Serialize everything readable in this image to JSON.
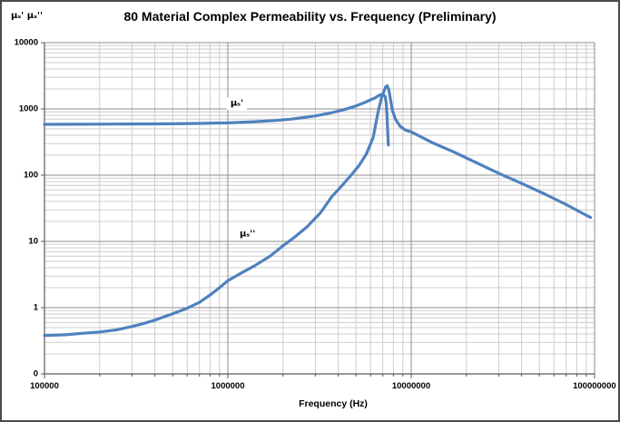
{
  "chart_data": {
    "type": "line",
    "title": "80 Material Complex Permeability vs. Frequency (Preliminary)",
    "xlabel": "Frequency (Hz)",
    "ylabel": "μₛ' μₛ''",
    "x_scale": "log",
    "y_scale": "log",
    "x_range": [
      100000,
      100000000
    ],
    "y_range": [
      0.1,
      10000
    ],
    "grid": "major-and-minor",
    "legend_position": "none",
    "x_ticks": [
      {
        "label": "100000",
        "value": 100000
      },
      {
        "label": "1000000",
        "value": 1000000
      },
      {
        "label": "10000000",
        "value": 10000000
      },
      {
        "label": "100000000",
        "value": 100000000
      }
    ],
    "y_ticks": [
      {
        "label": "10000",
        "value": 10000
      },
      {
        "label": "1000",
        "value": 1000
      },
      {
        "label": "100",
        "value": 100
      },
      {
        "label": "10",
        "value": 10
      },
      {
        "label": "1",
        "value": 1
      },
      {
        "label": "0",
        "value": 0.1
      }
    ],
    "line_color": "#4f81bd",
    "series": [
      {
        "name": "μₛ'",
        "points": [
          [
            100000,
            585
          ],
          [
            150000,
            587
          ],
          [
            200000,
            589
          ],
          [
            300000,
            592
          ],
          [
            400000,
            594
          ],
          [
            500000,
            597
          ],
          [
            700000,
            603
          ],
          [
            1000000,
            615
          ],
          [
            1400000,
            640
          ],
          [
            1800000,
            668
          ],
          [
            2200000,
            700
          ],
          [
            2600000,
            740
          ],
          [
            3000000,
            785
          ],
          [
            3500000,
            850
          ],
          [
            4000000,
            925
          ],
          [
            4500000,
            1010
          ],
          [
            5000000,
            1110
          ],
          [
            5500000,
            1230
          ],
          [
            6000000,
            1370
          ],
          [
            6400000,
            1480
          ],
          [
            6600000,
            1570
          ],
          [
            6800000,
            1640
          ],
          [
            7000000,
            1650
          ],
          [
            7200000,
            1550
          ],
          [
            7300000,
            1250
          ],
          [
            7380000,
            800
          ],
          [
            7440000,
            450
          ],
          [
            7500000,
            285
          ]
        ]
      },
      {
        "name": "μₛ''",
        "points": [
          [
            100000,
            0.38
          ],
          [
            130000,
            0.39
          ],
          [
            160000,
            0.41
          ],
          [
            200000,
            0.43
          ],
          [
            250000,
            0.465
          ],
          [
            300000,
            0.52
          ],
          [
            350000,
            0.58
          ],
          [
            400000,
            0.65
          ],
          [
            450000,
            0.73
          ],
          [
            500000,
            0.81
          ],
          [
            600000,
            0.98
          ],
          [
            700000,
            1.2
          ],
          [
            800000,
            1.55
          ],
          [
            900000,
            2.0
          ],
          [
            1000000,
            2.55
          ],
          [
            1200000,
            3.4
          ],
          [
            1400000,
            4.3
          ],
          [
            1700000,
            6.0
          ],
          [
            2000000,
            8.6
          ],
          [
            2300000,
            11.5
          ],
          [
            2700000,
            16.5
          ],
          [
            3200000,
            27
          ],
          [
            3700000,
            48
          ],
          [
            4200000,
            70
          ],
          [
            4700000,
            100
          ],
          [
            5200000,
            140
          ],
          [
            5700000,
            210
          ],
          [
            6200000,
            370
          ],
          [
            6600000,
            900
          ],
          [
            6900000,
            1500
          ],
          [
            7100000,
            1850
          ],
          [
            7250000,
            2150
          ],
          [
            7400000,
            2230
          ],
          [
            7550000,
            1950
          ],
          [
            7700000,
            1400
          ],
          [
            7900000,
            950
          ],
          [
            8200000,
            700
          ],
          [
            8700000,
            545
          ],
          [
            9300000,
            480
          ],
          [
            10000000,
            450
          ],
          [
            13000000,
            310
          ],
          [
            17000000,
            225
          ],
          [
            22000000,
            160
          ],
          [
            30000000,
            107
          ],
          [
            40000000,
            75
          ],
          [
            55000000,
            50
          ],
          [
            70000000,
            36
          ],
          [
            85000000,
            27
          ],
          [
            95000000,
            23
          ]
        ]
      }
    ],
    "annotations": [
      {
        "text": "μₛ'",
        "f": 1120000,
        "v": 1210
      },
      {
        "text": "μₛ''",
        "f": 1280000,
        "v": 13
      }
    ]
  },
  "colors": {
    "series_line": "#4f81bd",
    "grid_major": "#8e8e8e",
    "grid_minor": "#cdcdcd",
    "axis_line": "#5a5a5a",
    "frame_border": "#4a4a4a"
  }
}
